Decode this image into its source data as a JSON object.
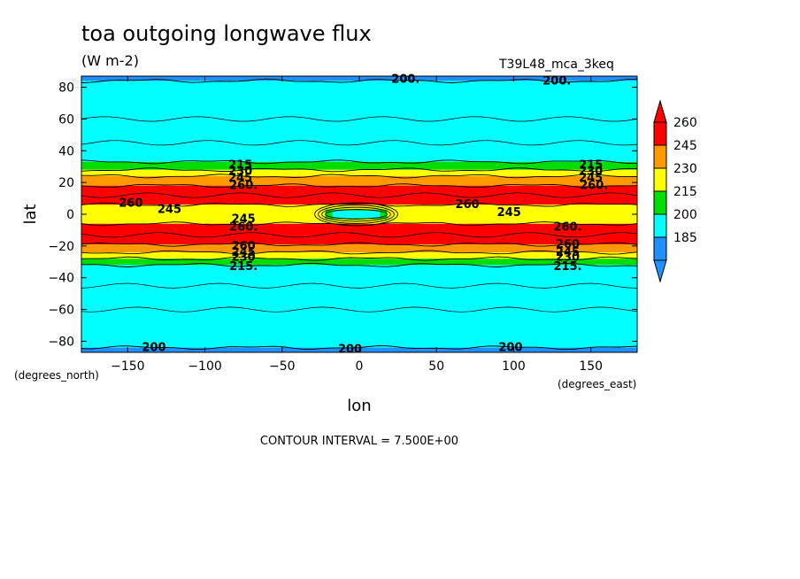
{
  "chart_data": {
    "type": "heatmap",
    "title": "toa outgoing longwave flux",
    "units": "(W m-2)",
    "dataset": "T39L48_mca_3keq",
    "xlabel": "lon",
    "ylabel": "lat",
    "x_unit_label": "(degrees_east)",
    "y_unit_label": "(degrees_north)",
    "xlim": [
      -180,
      180
    ],
    "ylim": [
      -87,
      87
    ],
    "x_ticks": [
      -150,
      -100,
      -50,
      0,
      50,
      100,
      150
    ],
    "y_ticks": [
      -80,
      -60,
      -40,
      -20,
      0,
      20,
      40,
      60,
      80
    ],
    "contour_interval_text": "CONTOUR INTERVAL = 7.500E+00",
    "colorbar": {
      "levels": [
        185,
        200,
        215,
        230,
        245,
        260
      ],
      "colors": [
        "#1e90ff",
        "#00ffff",
        "#00dd00",
        "#ffff00",
        "#ff9900",
        "#ff0000"
      ],
      "under_color": "#1e90ff",
      "over_color": "#ff0000"
    },
    "bands": [
      {
        "lat_min": 84,
        "lat_max": 87,
        "class": 0
      },
      {
        "lat_min": 33,
        "lat_max": 84,
        "class": 1
      },
      {
        "lat_min": 28,
        "lat_max": 33,
        "class": 2
      },
      {
        "lat_min": 24,
        "lat_max": 28,
        "class": 3
      },
      {
        "lat_min": 18,
        "lat_max": 24,
        "class": 4
      },
      {
        "lat_min": 6,
        "lat_max": 18,
        "class": 5
      },
      {
        "lat_min": -6,
        "lat_max": 6,
        "class": 3
      },
      {
        "lat_min": -19,
        "lat_max": -6,
        "class": 5
      },
      {
        "lat_min": -24,
        "lat_max": -19,
        "class": 4
      },
      {
        "lat_min": -28,
        "lat_max": -24,
        "class": 3
      },
      {
        "lat_min": -32,
        "lat_max": -28,
        "class": 2
      },
      {
        "lat_min": -84,
        "lat_max": -32,
        "class": 1
      },
      {
        "lat_min": -87,
        "lat_max": -84,
        "class": 0
      }
    ],
    "equatorial_anomaly": {
      "lon_min": -22,
      "lon_max": 18,
      "lat_min": -3,
      "lat_max": 3
    },
    "contour_labels": [
      {
        "text": "200.",
        "lon": 30,
        "lat": 85
      },
      {
        "text": "200.",
        "lon": 128,
        "lat": 84
      },
      {
        "text": "200",
        "lon": -133,
        "lat": -84
      },
      {
        "text": "200",
        "lon": -6,
        "lat": -85
      },
      {
        "text": "200",
        "lon": 98,
        "lat": -84
      },
      {
        "text": "215",
        "lon": -77,
        "lat": 31
      },
      {
        "text": "215",
        "lon": 150,
        "lat": 31
      },
      {
        "text": "230",
        "lon": -77,
        "lat": 27
      },
      {
        "text": "230",
        "lon": 150,
        "lat": 27
      },
      {
        "text": "245",
        "lon": -77,
        "lat": 23
      },
      {
        "text": "245",
        "lon": 150,
        "lat": 23
      },
      {
        "text": "260.",
        "lon": -75,
        "lat": 18
      },
      {
        "text": "260.",
        "lon": 152,
        "lat": 18
      },
      {
        "text": "260",
        "lon": -148,
        "lat": 7
      },
      {
        "text": "245",
        "lon": -123,
        "lat": 3
      },
      {
        "text": "260",
        "lon": 70,
        "lat": 6
      },
      {
        "text": "245",
        "lon": 97,
        "lat": 1
      },
      {
        "text": "245",
        "lon": -75,
        "lat": -3
      },
      {
        "text": "260.",
        "lon": -75,
        "lat": -8
      },
      {
        "text": "260.",
        "lon": 135,
        "lat": -8
      },
      {
        "text": "260",
        "lon": -75,
        "lat": -20
      },
      {
        "text": "260",
        "lon": 135,
        "lat": -19
      },
      {
        "text": "245",
        "lon": -75,
        "lat": -24
      },
      {
        "text": "245",
        "lon": 135,
        "lat": -24
      },
      {
        "text": "230",
        "lon": -75,
        "lat": -27
      },
      {
        "text": "230",
        "lon": 135,
        "lat": -27
      },
      {
        "text": "215.",
        "lon": -75,
        "lat": -33
      },
      {
        "text": "215.",
        "lon": 135,
        "lat": -33
      }
    ]
  }
}
